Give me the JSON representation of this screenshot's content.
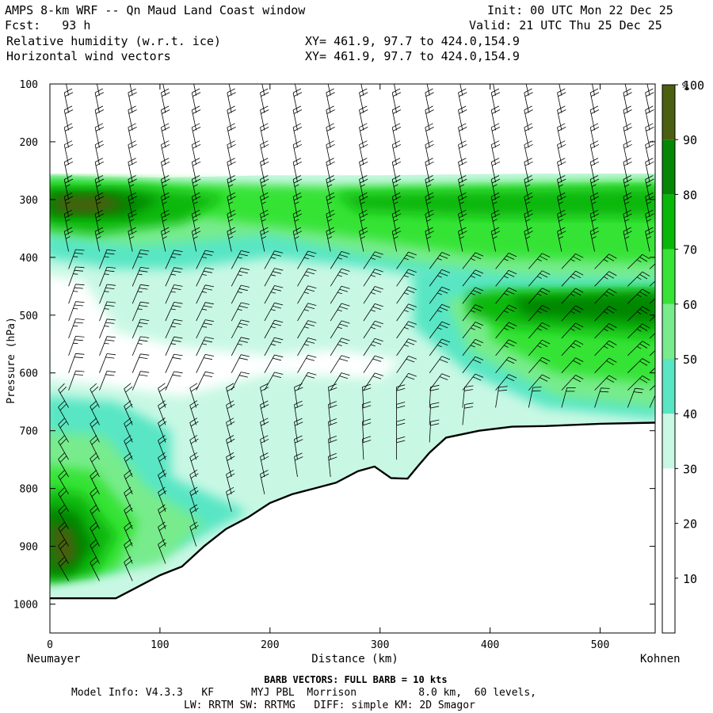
{
  "header": {
    "title": "AMPS 8-km WRF -- Qn Maud Land Coast window",
    "fcst": "Fcst:   93 h",
    "init": "Init: 00 UTC Mon 22 Dec 25",
    "valid": "Valid: 21 UTC Thu 25 Dec 25",
    "field1": "Relative humidity (w.r.t. ice)",
    "field2": "Horizontal wind vectors",
    "xy1": "XY= 461.9, 97.7 to 424.0,154.9",
    "xy2": "XY= 461.9, 97.7 to 424.0,154.9"
  },
  "chart_data": {
    "type": "heatmap",
    "title": "Relative humidity (w.r.t. ice) cross-section with horizontal wind vectors",
    "xlabel": "Distance (km)",
    "ylabel": "Pressure (hPa)",
    "xlim": [
      0,
      550
    ],
    "ylim": [
      1050,
      100
    ],
    "x_ticks": [
      0,
      100,
      200,
      300,
      400,
      500
    ],
    "y_ticks": [
      100,
      200,
      300,
      400,
      500,
      600,
      700,
      800,
      900,
      1000
    ],
    "x_start_label": "Neumayer",
    "x_end_label": "Kohnen",
    "colorbar": {
      "unit": "%",
      "levels": [
        10,
        20,
        30,
        40,
        50,
        60,
        70,
        80,
        90,
        100
      ],
      "colors": [
        "#ffffff",
        "#ffffff",
        "#ffffff",
        "#c8f8e4",
        "#58e6c4",
        "#78ec8c",
        "#36e336",
        "#08b808",
        "#058605",
        "#4a5f10"
      ]
    },
    "terrain_pressure_hPa": {
      "x_km": [
        0,
        60,
        75,
        100,
        120,
        140,
        160,
        180,
        200,
        220,
        240,
        260,
        280,
        295,
        310,
        325,
        335,
        345,
        360,
        390,
        420,
        450,
        500,
        550
      ],
      "p": [
        990,
        990,
        975,
        950,
        935,
        900,
        870,
        850,
        825,
        810,
        800,
        790,
        770,
        762,
        782,
        783,
        760,
        738,
        712,
        700,
        693,
        692,
        688,
        686
      ]
    },
    "rh_regions": [
      {
        "level": "30-40",
        "x_km": [
          0,
          550
        ],
        "p_range": [
          260,
          700
        ]
      },
      {
        "level": "60-70",
        "x_km": [
          0,
          550
        ],
        "p_range": [
          255,
          340
        ]
      },
      {
        "level": "90-100",
        "x_km": [
          0,
          80
        ],
        "p_range": [
          280,
          330
        ]
      },
      {
        "level": "90-100",
        "x_km": [
          0,
          40
        ],
        "p_range": [
          820,
          950
        ]
      },
      {
        "level": "80-90",
        "x_km": [
          410,
          550
        ],
        "p_range": [
          460,
          520
        ]
      },
      {
        "level": "10-20",
        "x_km": [
          0,
          200
        ],
        "p_range": [
          560,
          620
        ]
      }
    ],
    "wind_barb_rows_hPa": [
      120,
      150,
      180,
      210,
      240,
      270,
      300,
      330,
      360,
      390,
      420,
      450,
      480,
      510,
      540,
      570,
      600,
      630,
      660,
      690,
      720,
      750,
      780,
      810,
      840,
      870,
      900,
      930,
      960
    ],
    "wind_barb_columns_km": [
      17,
      45,
      75,
      105,
      133,
      165,
      195,
      225,
      255,
      285,
      315,
      345,
      375,
      405,
      435,
      465,
      495,
      525,
      545
    ],
    "barb_legend": "BARB VECTORS:  FULL BARB = 10 kts"
  },
  "footer": {
    "model_info": "Model Info: V4.3.3   KF      MYJ PBL  Morrison          8.0 km,  60 levels,",
    "model_info2": "LW: RRTM SW: RRTMG   DIFF: simple KM: 2D Smagor"
  }
}
